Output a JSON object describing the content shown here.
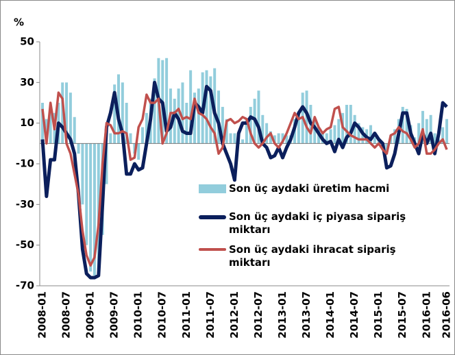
{
  "chart_data": {
    "type": "combo",
    "y_label": "%",
    "categories": [
      "2008-01",
      null,
      null,
      null,
      null,
      null,
      "2008-07",
      null,
      null,
      null,
      null,
      null,
      "2009-01",
      null,
      null,
      null,
      null,
      null,
      "2009-07",
      null,
      null,
      null,
      null,
      null,
      "2010-01",
      null,
      null,
      null,
      null,
      null,
      "2010-07",
      null,
      null,
      null,
      null,
      null,
      "2011-01",
      null,
      null,
      null,
      null,
      null,
      "2011-07",
      null,
      null,
      null,
      null,
      null,
      "2012-01",
      null,
      null,
      null,
      null,
      null,
      "2012-07",
      null,
      null,
      null,
      null,
      null,
      "2013-01",
      null,
      null,
      null,
      null,
      null,
      "2013-07",
      null,
      null,
      null,
      null,
      null,
      "2014-01",
      null,
      null,
      null,
      null,
      null,
      "2014-07",
      null,
      null,
      null,
      null,
      null,
      "2015-01",
      null,
      null,
      null,
      null,
      null,
      "2015-07",
      null,
      null,
      null,
      null,
      null,
      "2016-01",
      null,
      null,
      null,
      null,
      "2016-06"
    ],
    "series": [
      {
        "name": "Son üç aydaki üretim hacmi",
        "type": "bar",
        "color": "#92cddc",
        "values": [
          20,
          12,
          17,
          15,
          20,
          30,
          30,
          25,
          13,
          -5,
          -30,
          -50,
          -63,
          -65,
          -62,
          -45,
          -20,
          5,
          29,
          34,
          30,
          20,
          5,
          -5,
          -8,
          8,
          15,
          22,
          32,
          42,
          41,
          42,
          27,
          22,
          27,
          30,
          20,
          36,
          25,
          27,
          35,
          36,
          33,
          37,
          26,
          18,
          12,
          5,
          5,
          4,
          2,
          12,
          18,
          22,
          26,
          14,
          10,
          6,
          4,
          5,
          5,
          4,
          4,
          12,
          15,
          25,
          26,
          19,
          12,
          8,
          6,
          5,
          7,
          9,
          12,
          15,
          19,
          19,
          14,
          10,
          8,
          7,
          9,
          3,
          2,
          -3,
          -5,
          4,
          7,
          12,
          18,
          17,
          9,
          3,
          10,
          16,
          12,
          14,
          5,
          2,
          8,
          12
        ]
      },
      {
        "name": "Son üç aydaki iç piyasa sipariş miktarı",
        "type": "line",
        "color": "#0b1f5c",
        "values": [
          2,
          -26,
          -8,
          -8,
          10,
          8,
          5,
          2,
          -5,
          -25,
          -52,
          -64,
          -66,
          -66,
          -65,
          -30,
          8,
          15,
          25,
          12,
          5,
          -15,
          -15,
          -10,
          -13,
          -12,
          0,
          12,
          30,
          22,
          20,
          6,
          8,
          15,
          12,
          6,
          5,
          5,
          20,
          18,
          15,
          28,
          26,
          15,
          10,
          0,
          -5,
          -10,
          -18,
          5,
          10,
          10,
          13,
          12,
          8,
          0,
          -2,
          -7,
          -6,
          -2,
          -7,
          -2,
          2,
          8,
          15,
          18,
          15,
          10,
          8,
          5,
          2,
          0,
          1,
          -4,
          2,
          -2,
          3,
          5,
          10,
          8,
          5,
          3,
          2,
          5,
          2,
          0,
          -12,
          -11,
          -5,
          5,
          15,
          15,
          5,
          0,
          -5,
          5,
          0,
          5,
          -5,
          5,
          20,
          18
        ]
      },
      {
        "name": "Son üç aydaki ihracat sipariş miktarı",
        "type": "line",
        "color": "#c0504d",
        "values": [
          17,
          0,
          20,
          7,
          25,
          22,
          0,
          -5,
          -15,
          -25,
          -43,
          -55,
          -60,
          -56,
          -40,
          -10,
          10,
          9,
          5,
          5,
          6,
          5,
          -8,
          -7,
          8,
          12,
          24,
          20,
          20,
          22,
          0,
          5,
          15,
          15,
          17,
          12,
          13,
          12,
          22,
          15,
          14,
          12,
          8,
          5,
          -5,
          -2,
          11,
          12,
          10,
          11,
          13,
          12,
          5,
          0,
          -2,
          0,
          3,
          5,
          0,
          -2,
          1,
          5,
          10,
          15,
          12,
          13,
          8,
          5,
          13,
          8,
          5,
          7,
          8,
          17,
          18,
          8,
          6,
          4,
          3,
          2,
          2,
          2,
          0,
          -2,
          0,
          -3,
          -5,
          4,
          5,
          8,
          6,
          5,
          2,
          -2,
          0,
          7,
          -5,
          -5,
          -3,
          0,
          2,
          -3
        ]
      }
    ],
    "ylim": [
      -70,
      50
    ],
    "yticks": [
      -70,
      -50,
      -30,
      -10,
      10,
      30,
      50
    ]
  }
}
